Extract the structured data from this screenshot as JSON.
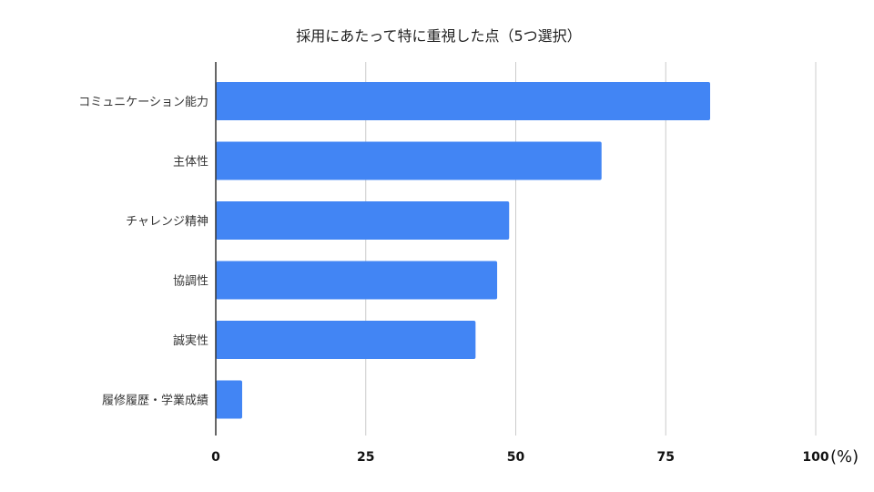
{
  "chart_data": {
    "type": "bar",
    "orientation": "horizontal",
    "title": "採用にあたって特に重視した点（5つ選択）",
    "categories": [
      "コミュニケーション能力",
      "主体性",
      "チャレンジ精神",
      "協調性",
      "誠実性",
      "履修履歴・学業成績"
    ],
    "values": [
      82.4,
      64.3,
      48.9,
      46.9,
      43.3,
      4.4
    ],
    "xlim": [
      0,
      100
    ],
    "xticks": [
      "0",
      "25",
      "50",
      "75",
      "100"
    ],
    "tick_values": [
      0,
      25,
      50,
      75,
      100
    ],
    "unit": "(%)",
    "grid": true,
    "bar_color": "#4285f4",
    "grid_color": "#cccccc",
    "axis_color": "#333333"
  }
}
